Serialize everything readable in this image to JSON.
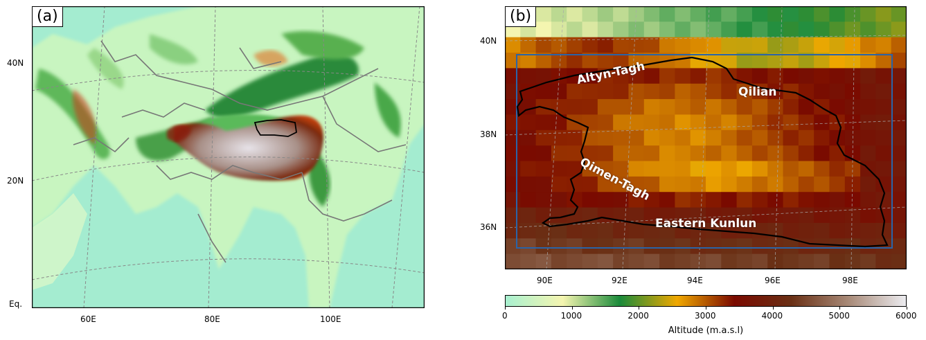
{
  "panel_a": {
    "label": "(a)",
    "lat_ticks": [
      "40N",
      "20N",
      "Eq."
    ],
    "lon_ticks": [
      "60E",
      "80E",
      "100E"
    ]
  },
  "panel_b": {
    "label": "(b)",
    "lat_ticks": [
      "40N",
      "38N",
      "36N"
    ],
    "lon_ticks": [
      "90E",
      "92E",
      "94E",
      "96E",
      "98E"
    ],
    "regions": [
      "Altyn-Tagh",
      "Qilian",
      "Qimen-Tagh",
      "Eastern Kunlun"
    ]
  },
  "colorbar": {
    "title": "Altitude (m.a.s.l)",
    "ticks": [
      "0",
      "1000",
      "2000",
      "3000",
      "4000",
      "5000",
      "6000"
    ],
    "range": [
      0,
      6000
    ],
    "colors": [
      "#a8f0d0",
      "#f5f5b0",
      "#1a8a3a",
      "#f0a800",
      "#7a0a00",
      "#6a3015",
      "#a88a78",
      "#ececf0"
    ]
  },
  "colors": {
    "ocean": "#a4ecd0",
    "border": "#777777",
    "outline": "#000000",
    "study_box": "#2a64a8"
  }
}
